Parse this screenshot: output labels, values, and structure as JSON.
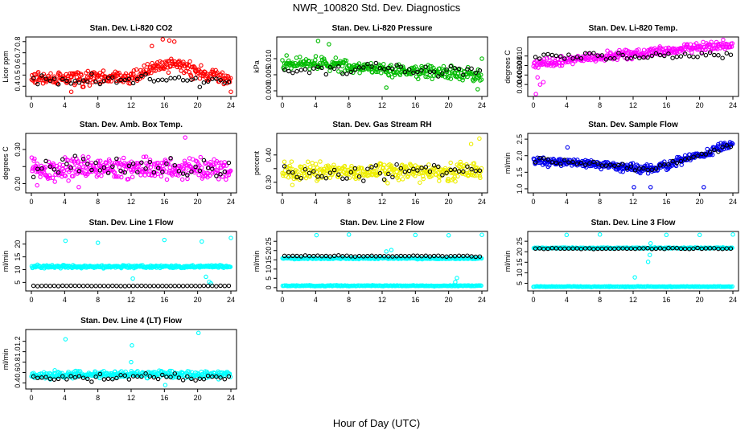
{
  "title": "NWR_100820  Std. Dev. Diagnostics",
  "xlabel": "Hour of Day (UTC)",
  "chart_data": [
    {
      "type": "scatter",
      "title": "Stan. Dev. Li-820 CO2",
      "ylabel": "Licor ppm",
      "xlim": [
        0,
        24
      ],
      "ylim": [
        0.33,
        0.82
      ],
      "xticks": [
        0,
        4,
        8,
        12,
        16,
        20,
        24
      ],
      "yticks": [
        0.4,
        0.5,
        0.6,
        0.7,
        0.8
      ],
      "ytick_labels": [
        "0.4",
        "0.5",
        "0.6",
        "0.7",
        "0.8"
      ],
      "color": "#ff0000",
      "trend": {
        "x": [
          0,
          6,
          12,
          14,
          16,
          18,
          20,
          22,
          24
        ],
        "y": [
          0.47,
          0.47,
          0.48,
          0.54,
          0.6,
          0.58,
          0.52,
          0.5,
          0.45
        ]
      },
      "spread": 0.05,
      "n": 300,
      "outliers": [
        [
          15.8,
          0.82
        ],
        [
          16.6,
          0.81
        ],
        [
          17.2,
          0.8
        ],
        [
          14.5,
          0.76
        ],
        [
          24,
          0.35
        ],
        [
          4.8,
          0.35
        ]
      ],
      "black_mean": 0.46,
      "black_spread": 0.04
    },
    {
      "type": "scatter",
      "title": "Stan. Dev. Li-820 Pressure",
      "ylabel": "kPa",
      "xlim": [
        0,
        24
      ],
      "ylim": [
        -0.001,
        0.016
      ],
      "xticks": [
        0,
        4,
        8,
        12,
        16,
        20,
        24
      ],
      "yticks": [
        0.0,
        0.005,
        0.01
      ],
      "ytick_labels": [
        "0.000",
        "0.005",
        "0.010"
      ],
      "color": "#00bb00",
      "trend": {
        "x": [
          0,
          4,
          8,
          12,
          16,
          20,
          24
        ],
        "y": [
          0.0085,
          0.0085,
          0.0075,
          0.0065,
          0.006,
          0.0055,
          0.0045
        ]
      },
      "spread": 0.0015,
      "n": 300,
      "outliers": [
        [
          4.3,
          0.0155
        ],
        [
          5.6,
          0.0145
        ],
        [
          0.5,
          0.011
        ],
        [
          24,
          0.01
        ],
        [
          23.5,
          0.0005
        ],
        [
          12.5,
          0.001
        ]
      ],
      "black_mean": 0.0065,
      "black_spread": 0.0015
    },
    {
      "type": "scatter",
      "title": "Stan. Dev. Li-820 Temp.",
      "ylabel": "degrees C",
      "xlim": [
        0,
        24
      ],
      "ylim": [
        0.002,
        0.0135
      ],
      "xticks": [
        0,
        4,
        8,
        12,
        16,
        20,
        24
      ],
      "yticks": [
        0.004,
        0.006,
        0.008,
        0.01
      ],
      "ytick_labels": [
        "0.004",
        "0.006",
        "0.008",
        "0.010"
      ],
      "color": "#ff00ff",
      "trend": {
        "x": [
          0,
          4,
          8,
          12,
          16,
          20,
          24
        ],
        "y": [
          0.0085,
          0.009,
          0.0098,
          0.0105,
          0.011,
          0.0118,
          0.0122
        ]
      },
      "spread": 0.0008,
      "n": 300,
      "outliers": [
        [
          0.5,
          0.0055
        ],
        [
          0.8,
          0.004
        ],
        [
          1.2,
          0.0045
        ],
        [
          0.3,
          0.002
        ]
      ],
      "black_mean": 0.01,
      "black_spread": 0.0008
    },
    {
      "type": "scatter",
      "title": "Stan. Dev. Amb. Box Temp.",
      "ylabel": "degrees C",
      "xlim": [
        0,
        24
      ],
      "ylim": [
        0.18,
        0.34
      ],
      "xticks": [
        0,
        4,
        8,
        12,
        16,
        20,
        24
      ],
      "yticks": [
        0.2,
        0.25,
        0.3
      ],
      "ytick_labels": [
        "0.20",
        "",
        "0.30"
      ],
      "color": "#ff00ff",
      "trend": {
        "x": [
          0,
          24
        ],
        "y": [
          0.245,
          0.245
        ]
      },
      "spread": 0.025,
      "n": 340,
      "outliers": [
        [
          18.5,
          0.335
        ],
        [
          0.7,
          0.195
        ],
        [
          5.7,
          0.19
        ]
      ],
      "black_mean": 0.245,
      "black_spread": 0.025
    },
    {
      "type": "scatter",
      "title": "Stan. Dev. Gas Stream RH",
      "ylabel": "percent",
      "xlim": [
        0,
        24
      ],
      "ylim": [
        0.27,
        0.47
      ],
      "xticks": [
        0,
        4,
        8,
        12,
        16,
        20,
        24
      ],
      "yticks": [
        0.3,
        0.35,
        0.4
      ],
      "ytick_labels": [
        "0.30",
        "",
        "0.40"
      ],
      "color": "#eeee00",
      "trend": {
        "x": [
          0,
          24
        ],
        "y": [
          0.34,
          0.34
        ]
      },
      "spread": 0.025,
      "n": 330,
      "outliers": [
        [
          23.7,
          0.46
        ],
        [
          22.7,
          0.44
        ],
        [
          1.2,
          0.29
        ]
      ],
      "black_mean": 0.34,
      "black_spread": 0.025
    },
    {
      "type": "scatter",
      "title": "Stan. Dev. Sample Flow",
      "ylabel": "ml/min",
      "xlim": [
        0,
        24
      ],
      "ylim": [
        0.95,
        2.6
      ],
      "xticks": [
        0,
        4,
        8,
        12,
        16,
        20,
        24
      ],
      "yticks": [
        1.0,
        1.5,
        2.0,
        2.5
      ],
      "ytick_labels": [
        "1.0",
        "1.5",
        "2.0",
        "2.5"
      ],
      "color": "#0000ee",
      "trend": {
        "x": [
          0,
          4,
          8,
          12,
          14,
          16,
          18,
          20,
          22,
          24
        ],
        "y": [
          1.85,
          1.8,
          1.75,
          1.6,
          1.6,
          1.7,
          1.9,
          2.0,
          2.2,
          2.4
        ]
      },
      "spread": 0.1,
      "n": 340,
      "outliers": [
        [
          12.1,
          1.05
        ],
        [
          14.1,
          1.05
        ],
        [
          20.5,
          1.05
        ],
        [
          4.1,
          2.25
        ]
      ],
      "black_mean": null,
      "black_spread": 0.08
    },
    {
      "type": "scatter",
      "title": "Stan. Dev. Line 1 Flow",
      "ylabel": "ml/min",
      "xlim": [
        0,
        24
      ],
      "ylim": [
        2.6,
        24
      ],
      "xticks": [
        0,
        4,
        8,
        12,
        16,
        20,
        24
      ],
      "yticks": [
        5,
        10,
        15,
        20
      ],
      "ytick_labels": [
        "5",
        "10",
        "15",
        "20"
      ],
      "color": "#00ffff",
      "trend": {
        "x": [
          0,
          24
        ],
        "y": [
          11.2,
          11.2
        ]
      },
      "spread": 0.45,
      "n": 300,
      "outliers": [
        [
          4.1,
          21.3
        ],
        [
          8,
          20.5
        ],
        [
          16,
          21.6
        ],
        [
          20.5,
          21.0
        ],
        [
          24,
          22.4
        ],
        [
          12.2,
          6.5
        ],
        [
          21.0,
          7.2
        ],
        [
          21.4,
          5.2
        ],
        [
          21.6,
          4.6
        ]
      ],
      "black_mean": 3.6,
      "black_spread": 0.08
    },
    {
      "type": "scatter",
      "title": "Stan. Dev. Line 2 Flow",
      "ylabel": "ml/min",
      "xlim": [
        0,
        24
      ],
      "ylim": [
        -0.5,
        29
      ],
      "xticks": [
        0,
        4,
        8,
        12,
        16,
        20,
        24
      ],
      "yticks": [
        0,
        5,
        10,
        15,
        20,
        25
      ],
      "ytick_labels": [
        "0",
        "5",
        "10",
        "15",
        "20",
        "25"
      ],
      "color": "#00ffff",
      "trend": {
        "x": [
          0,
          24
        ],
        "y": [
          15.8,
          15.8
        ]
      },
      "spread": 0.35,
      "n": 240,
      "secondary": {
        "y": 1.0,
        "spread": 0.2,
        "n": 200
      },
      "outliers": [
        [
          4.1,
          28.3
        ],
        [
          8,
          28.6
        ],
        [
          16,
          28.4
        ],
        [
          20,
          28.2
        ],
        [
          24,
          28.5
        ],
        [
          21.0,
          5.2
        ],
        [
          20.8,
          3.0
        ],
        [
          12.5,
          19.5
        ],
        [
          13.1,
          20.3
        ]
      ],
      "black_mean": 17.0,
      "black_spread": 0.25
    },
    {
      "type": "scatter",
      "title": "Stan. Dev. Line 3 Flow",
      "ylabel": "ml/min",
      "xlim": [
        0,
        24
      ],
      "ylim": [
        2.5,
        28.5
      ],
      "xticks": [
        0,
        4,
        8,
        12,
        16,
        20,
        24
      ],
      "yticks": [
        5,
        10,
        15,
        20,
        25
      ],
      "ytick_labels": [
        "5",
        "10",
        "15",
        "20",
        "25"
      ],
      "color": "#00ffff",
      "trend": {
        "x": [
          0,
          24
        ],
        "y": [
          21.8,
          21.8
        ]
      },
      "spread": 0.2,
      "n": 240,
      "secondary": {
        "y": 3.4,
        "spread": 0.12,
        "n": 200
      },
      "outliers": [
        [
          4,
          28
        ],
        [
          8,
          28.2
        ],
        [
          12.2,
          7.8
        ],
        [
          13.8,
          15.2
        ],
        [
          14.0,
          18.5
        ],
        [
          14.1,
          24.0
        ],
        [
          16,
          28
        ],
        [
          20,
          28
        ],
        [
          24,
          28.2
        ]
      ],
      "black_mean": 21.5,
      "black_spread": 0.25
    },
    {
      "type": "scatter",
      "title": "Stan. Dev. Line 4 (LT) Flow",
      "ylabel": "ml/min",
      "xlim": [
        0,
        24
      ],
      "ylim": [
        0.33,
        1.38
      ],
      "xticks": [
        0,
        4,
        8,
        12,
        16,
        20,
        24
      ],
      "yticks": [
        0.4,
        0.6,
        0.8,
        1.0,
        1.2
      ],
      "ytick_labels": [
        "0.4",
        "0.6",
        "0.8",
        "1.0",
        "1.2"
      ],
      "color": "#00ffff",
      "trend": {
        "x": [
          0,
          24
        ],
        "y": [
          0.56,
          0.56
        ]
      },
      "spread": 0.055,
      "n": 320,
      "outliers": [
        [
          4.1,
          1.24
        ],
        [
          12.1,
          1.12
        ],
        [
          20.1,
          1.36
        ],
        [
          16.1,
          0.36
        ],
        [
          12,
          0.8
        ]
      ],
      "black_mean": 0.5,
      "black_spread": 0.05
    }
  ]
}
